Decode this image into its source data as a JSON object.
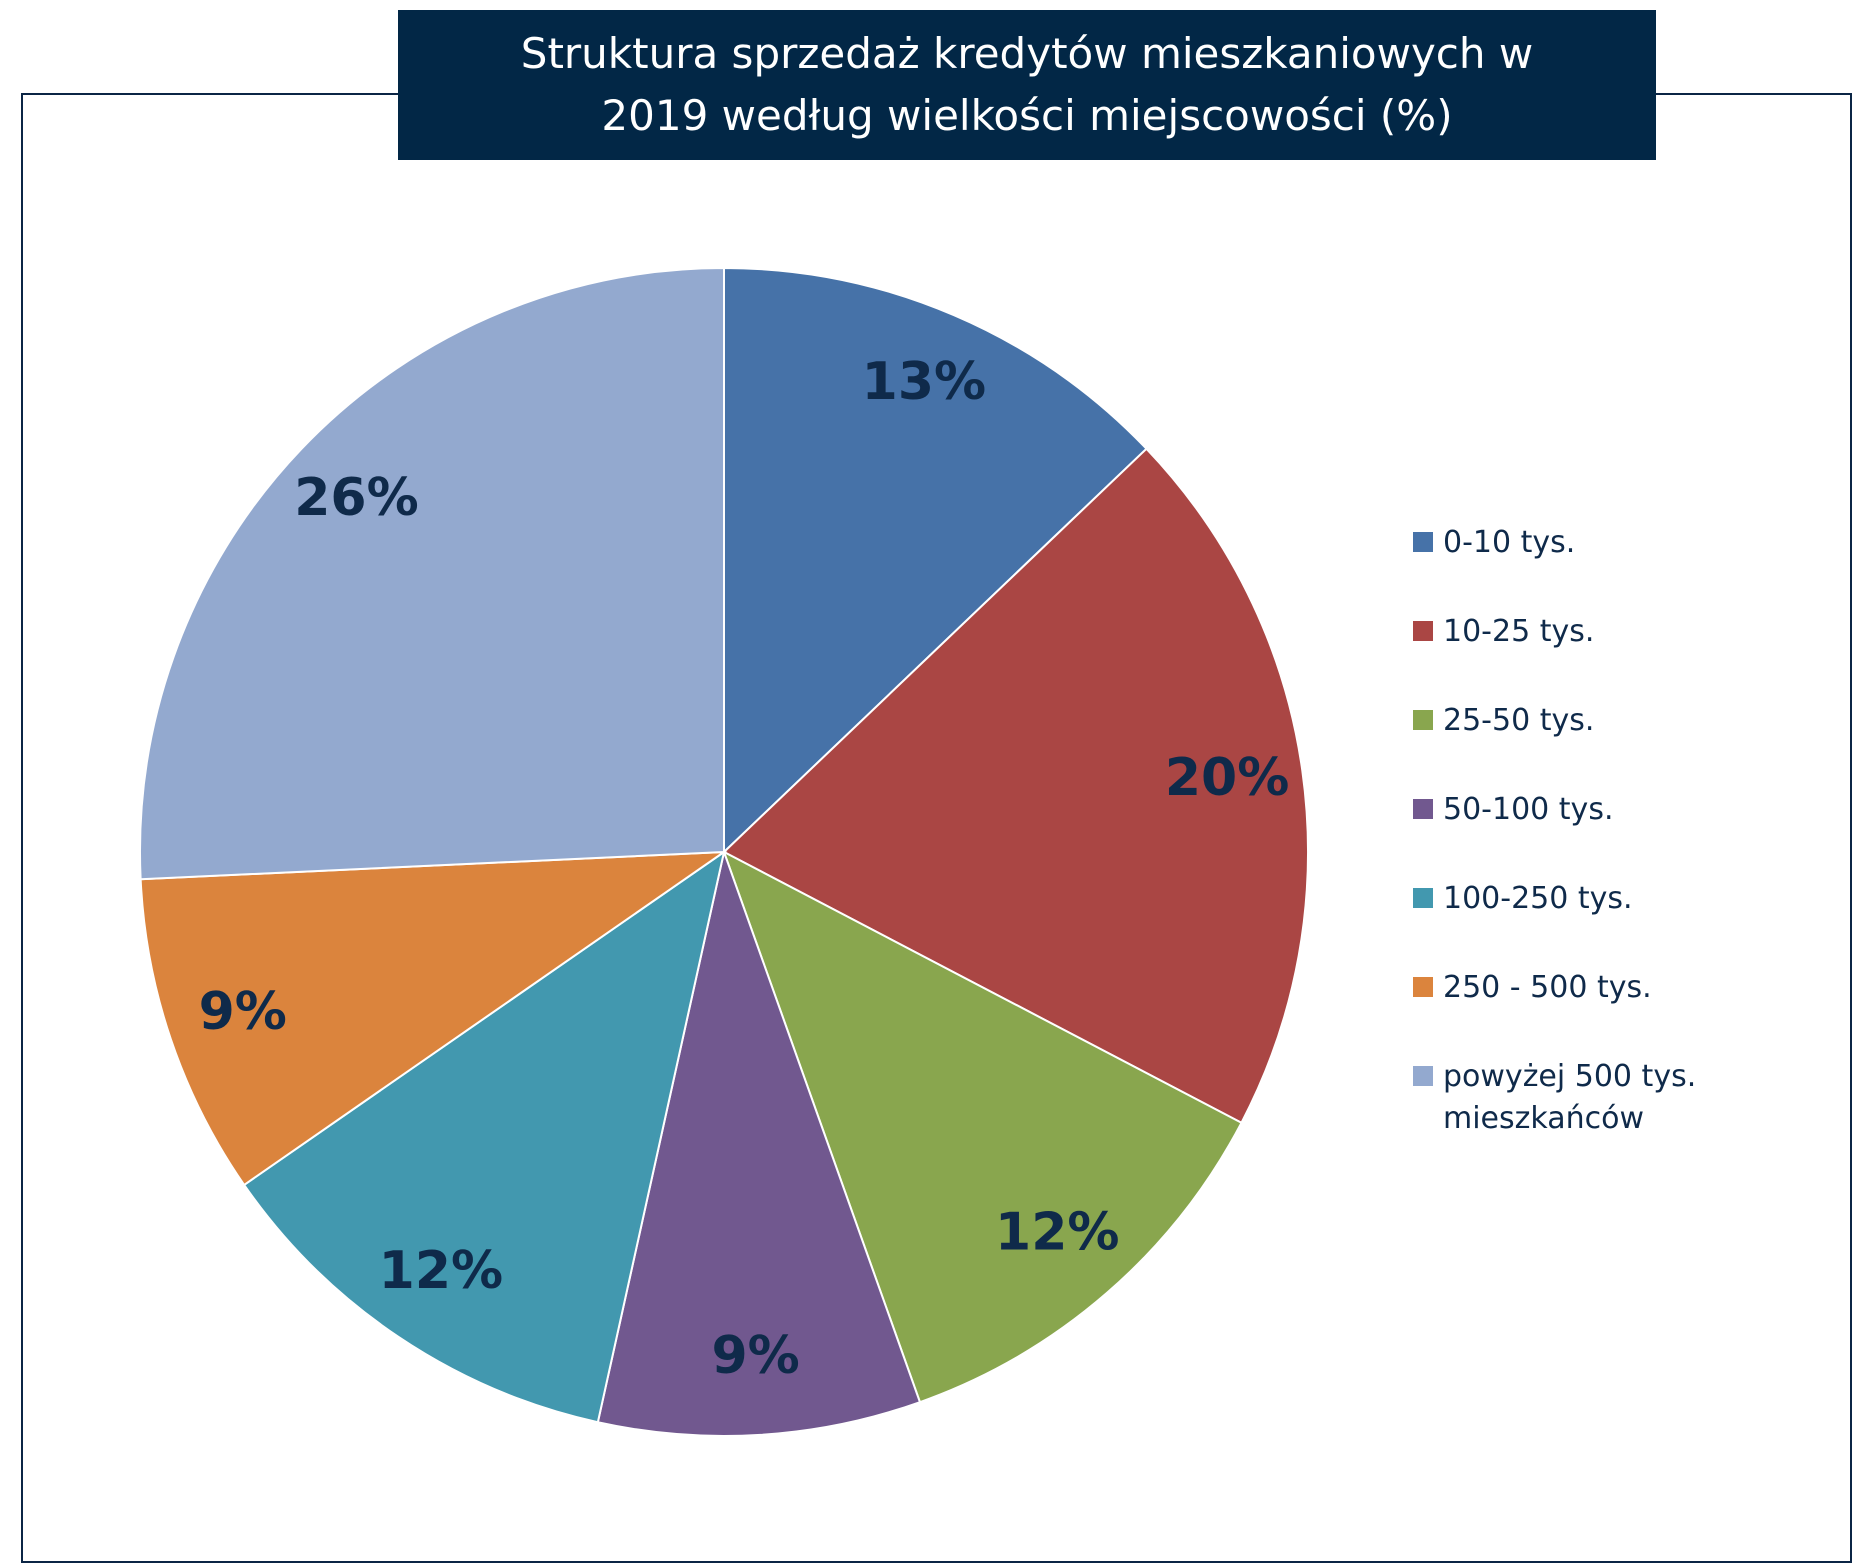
{
  "chart_data": {
    "type": "pie",
    "title": "Struktura sprzedaż kredytów mieszkaniowych w 2019 według wielkości miejscowości (%)",
    "categories": [
      "0-10 tys.",
      "10-25 tys.",
      "25-50 tys.",
      "50-100 tys.",
      "100-250 tys.",
      "250 - 500 tys.",
      "powyżej 500 tys. mieszkańców"
    ],
    "values": [
      13,
      20,
      12,
      9,
      12,
      9,
      26
    ],
    "value_labels": [
      "13%",
      "20%",
      "12%",
      "9%",
      "12%",
      "9%",
      "26%"
    ],
    "colors": [
      "#4672a8",
      "#aa4644",
      "#89a64e",
      "#71588f",
      "#4298af",
      "#db843d",
      "#93a9cf"
    ],
    "legend": "right"
  }
}
